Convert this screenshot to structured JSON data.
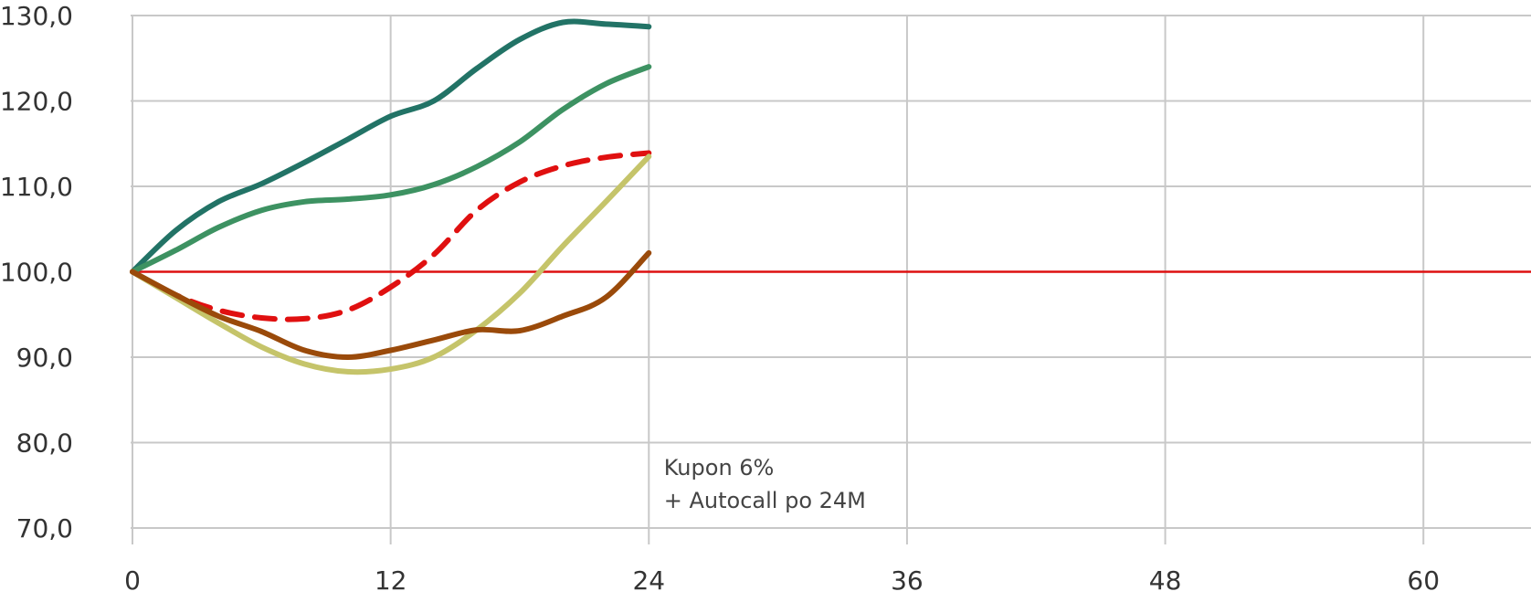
{
  "chart_data": {
    "type": "line",
    "title": "",
    "xlabel": "",
    "ylabel": "",
    "xlim": [
      0,
      65
    ],
    "ylim": [
      70,
      130
    ],
    "xticks": [
      0,
      12,
      24,
      36,
      48,
      60
    ],
    "xtick_labels": [
      "0",
      "12",
      "24",
      "36",
      "48",
      "60"
    ],
    "yticks": [
      70,
      80,
      90,
      100,
      110,
      120,
      130
    ],
    "ytick_labels": [
      "70,0",
      "80,0",
      "90,0",
      "100,0",
      "110,0",
      "120,0",
      "130,0"
    ],
    "grid": true,
    "reference_line": {
      "y": 100,
      "color": "#dd1111"
    },
    "annotation": {
      "lines": [
        "Kupon 6%",
        "+ Autocall po 24M"
      ],
      "x": 24.7,
      "y": 75
    },
    "series": [
      {
        "color": "#227366",
        "dashed": false,
        "x": [
          0,
          2,
          4,
          6,
          8,
          10,
          12,
          14,
          16,
          18,
          20,
          22,
          24
        ],
        "y": [
          100,
          104.8,
          108.2,
          110.3,
          112.8,
          115.5,
          118.2,
          120,
          123.8,
          127.2,
          129.2,
          129,
          128.7
        ]
      },
      {
        "color": "#3d9262",
        "dashed": false,
        "x": [
          0,
          2,
          4,
          6,
          8,
          10,
          12,
          14,
          16,
          18,
          20,
          22,
          24
        ],
        "y": [
          100,
          102.5,
          105.2,
          107.2,
          108.2,
          108.5,
          109,
          110.2,
          112.3,
          115.2,
          119,
          122,
          124
        ]
      },
      {
        "color": "#e01010",
        "dashed": true,
        "x": [
          0,
          2,
          4,
          6,
          8,
          10,
          12,
          14,
          16,
          18,
          20,
          22,
          24
        ],
        "y": [
          100,
          97.3,
          95.5,
          94.6,
          94.5,
          95.5,
          98.2,
          102,
          107.2,
          110.5,
          112.4,
          113.4,
          113.9
        ]
      },
      {
        "color": "#c5c46a",
        "dashed": false,
        "x": [
          0,
          2,
          4,
          6,
          8,
          10,
          12,
          14,
          16,
          18,
          20,
          22,
          24
        ],
        "y": [
          100,
          97,
          94,
          91.2,
          89.2,
          88.3,
          88.6,
          90,
          93.2,
          97.5,
          103,
          108.2,
          113.5
        ]
      },
      {
        "color": "#9a4a0a",
        "dashed": false,
        "x": [
          0,
          2,
          4,
          6,
          8,
          10,
          12,
          14,
          16,
          18,
          20,
          22,
          24
        ],
        "y": [
          100,
          97.3,
          94.8,
          93,
          90.8,
          90,
          90.8,
          92,
          93.2,
          93.1,
          94.8,
          97,
          102.2
        ]
      }
    ]
  }
}
